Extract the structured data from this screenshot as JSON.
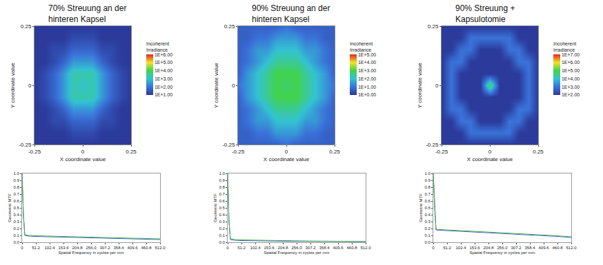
{
  "chart_data": [
    {
      "type": "heatmap",
      "title": "70% Streuung an der\nhinteren Kapsel",
      "xlabel": "X coordinate value",
      "ylabel": "Y coordinate value",
      "xlim": [
        -0.25,
        0.25
      ],
      "xticks": [
        -0.25,
        0,
        0.25
      ],
      "ylim": [
        -0.25,
        0.25
      ],
      "yticks": [
        -0.25,
        0,
        0.25
      ],
      "x": [
        -0.25,
        -0.2,
        -0.15,
        -0.1,
        -0.05,
        0,
        0.05,
        0.1,
        0.15,
        0.2,
        0.25
      ],
      "y": [
        -0.25,
        -0.2,
        -0.15,
        -0.1,
        -0.05,
        0,
        0.05,
        0.1,
        0.15,
        0.2,
        0.25
      ],
      "cells": [
        [
          10,
          10,
          10,
          10,
          10,
          10,
          10,
          10,
          10,
          10,
          10
        ],
        [
          10,
          10,
          10,
          10,
          20,
          20,
          20,
          10,
          10,
          10,
          10
        ],
        [
          10,
          10,
          20,
          20,
          60,
          60,
          60,
          20,
          20,
          10,
          10
        ],
        [
          10,
          10,
          20,
          60,
          300,
          300,
          300,
          60,
          20,
          10,
          10
        ],
        [
          10,
          20,
          60,
          300,
          2000,
          2000,
          2000,
          300,
          60,
          20,
          10
        ],
        [
          10,
          20,
          60,
          300,
          2000,
          1000,
          2000,
          300,
          60,
          20,
          10
        ],
        [
          10,
          20,
          60,
          300,
          2000,
          2000,
          2000,
          300,
          60,
          20,
          10
        ],
        [
          10,
          10,
          20,
          60,
          300,
          300,
          300,
          60,
          20,
          10,
          10
        ],
        [
          10,
          10,
          20,
          20,
          60,
          60,
          60,
          20,
          20,
          10,
          10
        ],
        [
          10,
          10,
          10,
          10,
          20,
          20,
          20,
          10,
          10,
          10,
          10
        ],
        [
          10,
          10,
          10,
          10,
          10,
          10,
          10,
          10,
          10,
          10,
          10
        ]
      ],
      "colorbar": {
        "title": "Incoherent\nIrradiance",
        "range": [
          10,
          1000000
        ],
        "ticks": [
          {
            "value": 1000000,
            "label": "1E+6.00"
          },
          {
            "value": 100000,
            "label": "1E+5.00"
          },
          {
            "value": 10000,
            "label": "1E+4.00"
          },
          {
            "value": 1000,
            "label": "1E+3.00"
          },
          {
            "value": 100,
            "label": "1E+2.00"
          },
          {
            "value": 10,
            "label": "1E+1.00"
          }
        ]
      }
    },
    {
      "type": "heatmap",
      "title": "90% Streuung an der\nhinteren Kapsel",
      "xlabel": "X coordinate value",
      "ylabel": "Y coordinate value",
      "xlim": [
        -0.25,
        0.25
      ],
      "xticks": [
        -0.25,
        0,
        0.25
      ],
      "ylim": [
        -0.25,
        0.25
      ],
      "yticks": [
        -0.25,
        0,
        0.25
      ],
      "x": [
        -0.25,
        -0.2,
        -0.15,
        -0.1,
        -0.05,
        0,
        0.05,
        0.1,
        0.15,
        0.2,
        0.25
      ],
      "y": [
        -0.25,
        -0.2,
        -0.15,
        -0.1,
        -0.05,
        0,
        0.05,
        0.1,
        0.15,
        0.2,
        0.25
      ],
      "cells": [
        [
          5,
          5,
          5,
          5,
          5,
          10,
          5,
          5,
          5,
          5,
          5
        ],
        [
          5,
          5,
          10,
          10,
          30,
          30,
          30,
          10,
          10,
          5,
          5
        ],
        [
          5,
          10,
          30,
          30,
          100,
          100,
          100,
          30,
          30,
          10,
          5
        ],
        [
          5,
          10,
          30,
          100,
          300,
          300,
          300,
          100,
          30,
          10,
          5
        ],
        [
          5,
          30,
          100,
          300,
          1000,
          1000,
          1000,
          300,
          100,
          30,
          5
        ],
        [
          10,
          30,
          100,
          300,
          1000,
          500,
          1000,
          300,
          100,
          30,
          10
        ],
        [
          5,
          30,
          100,
          300,
          1000,
          1000,
          1000,
          300,
          100,
          30,
          5
        ],
        [
          5,
          10,
          30,
          100,
          300,
          300,
          300,
          100,
          30,
          10,
          5
        ],
        [
          5,
          10,
          30,
          30,
          100,
          100,
          100,
          30,
          30,
          10,
          5
        ],
        [
          5,
          5,
          10,
          10,
          30,
          30,
          30,
          10,
          10,
          5,
          5
        ],
        [
          5,
          5,
          5,
          5,
          5,
          10,
          5,
          5,
          5,
          5,
          5
        ]
      ],
      "colorbar": {
        "title": "Incoherent\nIrradiance",
        "range": [
          1,
          100000
        ],
        "ticks": [
          {
            "value": 100000,
            "label": "1E+5.00"
          },
          {
            "value": 10000,
            "label": "1E+4.00"
          },
          {
            "value": 1000,
            "label": "1E+3.00"
          },
          {
            "value": 100,
            "label": "1E+2.00"
          },
          {
            "value": 10,
            "label": "1E+1.00"
          },
          {
            "value": 1,
            "label": "1E+0.00"
          }
        ]
      }
    },
    {
      "type": "heatmap",
      "title": "90% Streuung +\nKapsulotomie",
      "xlabel": "X coordinate value",
      "ylabel": "Y coordinate value",
      "xlim": [
        -0.25,
        0.25
      ],
      "xticks": [
        -0.25,
        0,
        0.25
      ],
      "ylim": [
        -0.25,
        0.25
      ],
      "yticks": [
        -0.25,
        0,
        0.25
      ],
      "x": [
        -0.25,
        -0.2,
        -0.15,
        -0.1,
        -0.05,
        0,
        0.05,
        0.1,
        0.15,
        0.2,
        0.25
      ],
      "y": [
        -0.25,
        -0.2,
        -0.15,
        -0.1,
        -0.05,
        0,
        0.05,
        0.1,
        0.15,
        0.2,
        0.25
      ],
      "cells": [
        [
          100,
          100,
          100,
          100,
          100,
          100,
          100,
          100,
          100,
          100,
          100
        ],
        [
          100,
          100,
          100,
          1000,
          1000,
          1000,
          1000,
          1000,
          100,
          100,
          100
        ],
        [
          100,
          100,
          1000,
          1000,
          100,
          100,
          100,
          1000,
          1000,
          100,
          100
        ],
        [
          100,
          1000,
          1000,
          100,
          100,
          100,
          100,
          100,
          1000,
          1000,
          100
        ],
        [
          100,
          1000,
          100,
          100,
          100,
          100,
          100,
          100,
          100,
          1000,
          100
        ],
        [
          100,
          1000,
          100,
          100,
          100,
          100000,
          100,
          100,
          100,
          1000,
          100
        ],
        [
          100,
          1000,
          100,
          100,
          100,
          100,
          100,
          100,
          100,
          1000,
          100
        ],
        [
          100,
          1000,
          1000,
          100,
          100,
          100,
          100,
          100,
          1000,
          1000,
          100
        ],
        [
          100,
          100,
          1000,
          1000,
          100,
          100,
          100,
          1000,
          1000,
          100,
          100
        ],
        [
          100,
          100,
          100,
          1000,
          1000,
          1000,
          1000,
          1000,
          100,
          100,
          100
        ],
        [
          100,
          100,
          100,
          100,
          100,
          100,
          100,
          100,
          100,
          100,
          100
        ]
      ],
      "colorbar": {
        "title": "Incoherent\nIrradiance",
        "range": [
          100,
          10000000
        ],
        "ticks": [
          {
            "value": 10000000,
            "label": "1E+7.00"
          },
          {
            "value": 1000000,
            "label": "1E+6.00"
          },
          {
            "value": 100000,
            "label": "1E+5.00"
          },
          {
            "value": 10000,
            "label": "1E+4.00"
          },
          {
            "value": 1000,
            "label": "1E+3.00"
          },
          {
            "value": 100,
            "label": "1E+2.00"
          }
        ]
      }
    },
    {
      "type": "line",
      "xlabel": "Spatial Frequency in cycles per mm",
      "ylabel": "Geometric MTF",
      "xlim": [
        0,
        512
      ],
      "xticks": [
        0,
        51.2,
        102.4,
        153.6,
        204.8,
        {
          "value": 256,
          "label": "256.0"
        },
        307.2,
        358.4,
        409.6,
        460.8,
        {
          "value": 512,
          "label": "512.0"
        }
      ],
      "ylim": [
        0,
        1
      ],
      "yticks": [
        {
          "value": 0,
          "label": "0.0"
        },
        0.1,
        0.2,
        0.3,
        0.4,
        0.5,
        0.6,
        0.7,
        0.8,
        0.9,
        {
          "value": 1,
          "label": "1.0"
        }
      ],
      "x": [
        0,
        5,
        10,
        25.6,
        51.2,
        102.4,
        153.6,
        204.8,
        256,
        307.2,
        358.4,
        409.6,
        460.8,
        512
      ],
      "series": [
        {
          "color": "#3a5fcd",
          "values": [
            1.0,
            0.4,
            0.1,
            0.09,
            0.085,
            0.08,
            0.075,
            0.07,
            0.065,
            0.06,
            0.055,
            0.05,
            0.045,
            0.04
          ]
        },
        {
          "color": "#4caf50",
          "values": [
            1.0,
            0.4,
            0.11,
            0.1,
            0.095,
            0.09,
            0.085,
            0.08,
            0.075,
            0.07,
            0.065,
            0.06,
            0.055,
            0.05
          ]
        }
      ]
    },
    {
      "type": "line",
      "xlabel": "Spatial Frequency in cycles per mm",
      "ylabel": "Geometric MTF",
      "xlim": [
        0,
        512
      ],
      "xticks": [
        0,
        51.2,
        102.4,
        153.6,
        204.8,
        {
          "value": 256,
          "label": "256.0"
        },
        307.2,
        358.4,
        409.6,
        460.8,
        {
          "value": 512,
          "label": "512.0"
        }
      ],
      "ylim": [
        0,
        1
      ],
      "yticks": [
        {
          "value": 0,
          "label": "0.0"
        },
        0.1,
        0.2,
        0.3,
        0.4,
        0.5,
        0.6,
        0.7,
        0.8,
        0.9,
        {
          "value": 1,
          "label": "1.0"
        }
      ],
      "x": [
        0,
        5,
        10,
        25.6,
        51.2,
        102.4,
        153.6,
        204.8,
        256,
        307.2,
        358.4,
        409.6,
        460.8,
        512
      ],
      "series": [
        {
          "color": "#3a5fcd",
          "values": [
            1.0,
            0.3,
            0.04,
            0.03,
            0.025,
            0.02,
            0.018,
            0.016,
            0.014,
            0.012,
            0.011,
            0.01,
            0.01,
            0.01
          ]
        },
        {
          "color": "#4caf50",
          "values": [
            1.0,
            0.3,
            0.05,
            0.04,
            0.035,
            0.03,
            0.027,
            0.024,
            0.021,
            0.018,
            0.016,
            0.014,
            0.013,
            0.012
          ]
        }
      ]
    },
    {
      "type": "line",
      "xlabel": "Spatial Frequency in cycles per mm",
      "ylabel": "Geometric MTF",
      "xlim": [
        0,
        512
      ],
      "xticks": [
        0,
        51.2,
        102.4,
        153.6,
        204.8,
        {
          "value": 256,
          "label": "256.0"
        },
        307.2,
        358.4,
        409.6,
        460.8,
        {
          "value": 512,
          "label": "512.0"
        }
      ],
      "ylim": [
        0,
        1
      ],
      "yticks": [
        {
          "value": 0,
          "label": "0.0"
        },
        0.1,
        0.2,
        0.3,
        0.4,
        0.5,
        0.6,
        0.7,
        0.8,
        0.9,
        {
          "value": 1,
          "label": "1.0"
        }
      ],
      "x": [
        0,
        5,
        10,
        25.6,
        51.2,
        102.4,
        153.6,
        204.8,
        256,
        307.2,
        358.4,
        409.6,
        460.8,
        512
      ],
      "series": [
        {
          "color": "#3a5fcd",
          "values": [
            1.0,
            0.5,
            0.18,
            0.175,
            0.17,
            0.16,
            0.15,
            0.14,
            0.13,
            0.12,
            0.11,
            0.1,
            0.085,
            0.07
          ]
        },
        {
          "color": "#4caf50",
          "values": [
            1.0,
            0.5,
            0.19,
            0.185,
            0.18,
            0.17,
            0.16,
            0.15,
            0.14,
            0.13,
            0.12,
            0.11,
            0.095,
            0.08
          ]
        }
      ]
    }
  ]
}
